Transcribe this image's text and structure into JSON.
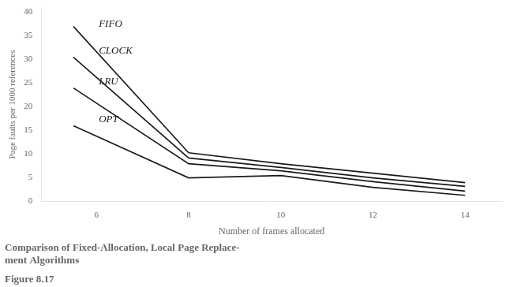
{
  "chart_data": {
    "type": "line",
    "title": "Figure 8.17",
    "subtitle": [
      "Comparison of Fixed-Allocation, Local Page Replace-",
      "ment Algorithms"
    ],
    "x_label": "Number of frames allocated",
    "y_label": "Page faults per 1000 references",
    "x": [
      5.5,
      8,
      10,
      12,
      14
    ],
    "series": [
      {
        "name": "FIFO",
        "color": "#1a1a1a",
        "values": [
          37,
          10.3,
          8.0,
          6.0,
          4.0
        ]
      },
      {
        "name": "CLOCK",
        "color": "#1a1a1a",
        "values": [
          30.5,
          9.2,
          7.2,
          5.0,
          3.2
        ]
      },
      {
        "name": "LRU",
        "color": "#1a1a1a",
        "values": [
          24,
          8.0,
          6.5,
          4.2,
          2.2
        ]
      },
      {
        "name": "OPT",
        "color": "#1a1a1a",
        "values": [
          16,
          5.0,
          5.5,
          3.0,
          1.3
        ]
      }
    ],
    "annotations": [
      {
        "text": "FIFO",
        "x": 6.05,
        "y": 36.5
      },
      {
        "text": "CLOCK",
        "x": 6.05,
        "y": 30.8
      },
      {
        "text": "LRU",
        "x": 6.05,
        "y": 24.3
      },
      {
        "text": "OPT",
        "x": 6.05,
        "y": 16.3
      }
    ],
    "xlim": [
      4.8,
      14.8
    ],
    "ylim": [
      0,
      41
    ],
    "xticks": [
      6,
      8,
      10,
      12,
      14
    ],
    "yticks": [
      0,
      5,
      10,
      15,
      20,
      25,
      30,
      35,
      40
    ],
    "grid": false,
    "legend": false
  }
}
